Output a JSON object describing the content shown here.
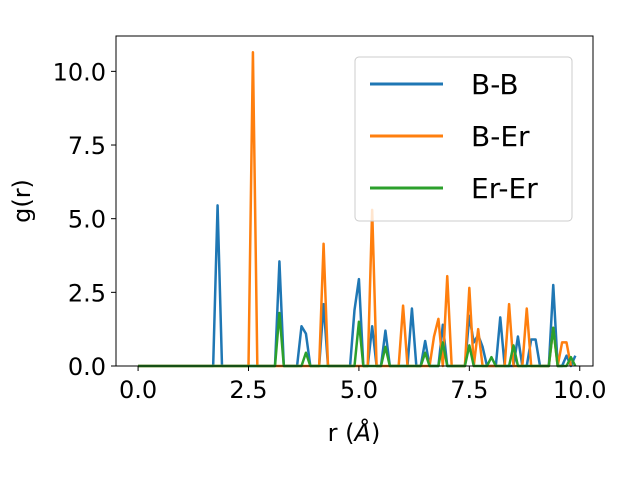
{
  "chart_data": {
    "type": "line",
    "title": "",
    "xlabel": "r (",
    "xlabel_unit": "Å",
    "xlabel_close": ")",
    "ylabel": "g(r)",
    "xlim": [
      -0.5,
      10.3
    ],
    "ylim": [
      0.0,
      11.2
    ],
    "xticks": [
      0.0,
      2.5,
      5.0,
      7.5,
      10.0
    ],
    "xtick_labels": [
      "0.0",
      "2.5",
      "5.0",
      "7.5",
      "10.0"
    ],
    "yticks": [
      0.0,
      2.5,
      5.0,
      7.5,
      10.0
    ],
    "ytick_labels": [
      "0.0",
      "2.5",
      "5.0",
      "7.5",
      "10.0"
    ],
    "grid": false,
    "legend_position": "top-right",
    "series": [
      {
        "name": "B-B",
        "color": "#1f77b4",
        "points": [
          [
            0.0,
            0
          ],
          [
            1.7,
            0
          ],
          [
            1.8,
            5.45
          ],
          [
            1.9,
            0
          ],
          [
            3.1,
            0
          ],
          [
            3.2,
            3.55
          ],
          [
            3.3,
            0
          ],
          [
            3.6,
            0
          ],
          [
            3.7,
            1.35
          ],
          [
            3.8,
            1.1
          ],
          [
            3.9,
            0
          ],
          [
            4.1,
            0
          ],
          [
            4.2,
            2.1
          ],
          [
            4.3,
            0
          ],
          [
            4.8,
            0
          ],
          [
            4.9,
            1.9
          ],
          [
            5.0,
            2.95
          ],
          [
            5.1,
            0
          ],
          [
            5.2,
            0
          ],
          [
            5.3,
            1.35
          ],
          [
            5.4,
            0
          ],
          [
            5.5,
            0
          ],
          [
            5.6,
            1.2
          ],
          [
            5.7,
            0
          ],
          [
            6.1,
            0
          ],
          [
            6.2,
            1.95
          ],
          [
            6.3,
            0
          ],
          [
            6.4,
            0
          ],
          [
            6.5,
            0.85
          ],
          [
            6.6,
            0
          ],
          [
            6.8,
            0
          ],
          [
            6.9,
            1.4
          ],
          [
            7.0,
            0
          ],
          [
            7.4,
            0
          ],
          [
            7.5,
            1.7
          ],
          [
            7.6,
            0.8
          ],
          [
            7.7,
            1.05
          ],
          [
            7.8,
            0.65
          ],
          [
            7.9,
            0
          ],
          [
            8.1,
            0
          ],
          [
            8.2,
            1.65
          ],
          [
            8.3,
            0
          ],
          [
            8.5,
            0
          ],
          [
            8.6,
            1.0
          ],
          [
            8.7,
            0
          ],
          [
            8.8,
            0
          ],
          [
            8.9,
            0.9
          ],
          [
            9.0,
            0.9
          ],
          [
            9.1,
            0
          ],
          [
            9.3,
            0
          ],
          [
            9.4,
            2.75
          ],
          [
            9.5,
            0
          ],
          [
            9.6,
            0
          ],
          [
            9.7,
            0.35
          ],
          [
            9.8,
            0
          ],
          [
            9.9,
            0.35
          ]
        ]
      },
      {
        "name": "B-Er",
        "color": "#ff7f0e",
        "points": [
          [
            0.0,
            0
          ],
          [
            2.5,
            0
          ],
          [
            2.6,
            10.65
          ],
          [
            2.7,
            0
          ],
          [
            4.1,
            0
          ],
          [
            4.2,
            4.15
          ],
          [
            4.3,
            0
          ],
          [
            5.2,
            0
          ],
          [
            5.3,
            5.3
          ],
          [
            5.4,
            0
          ],
          [
            5.9,
            0
          ],
          [
            6.0,
            2.05
          ],
          [
            6.1,
            0
          ],
          [
            6.6,
            0
          ],
          [
            6.7,
            1.0
          ],
          [
            6.8,
            1.6
          ],
          [
            6.9,
            0
          ],
          [
            7.0,
            3.05
          ],
          [
            7.1,
            0
          ],
          [
            7.4,
            0
          ],
          [
            7.5,
            2.65
          ],
          [
            7.6,
            0
          ],
          [
            7.7,
            1.25
          ],
          [
            7.8,
            0
          ],
          [
            8.3,
            0
          ],
          [
            8.4,
            2.1
          ],
          [
            8.5,
            0
          ],
          [
            8.7,
            0
          ],
          [
            8.8,
            1.95
          ],
          [
            8.9,
            0
          ],
          [
            9.3,
            0
          ],
          [
            9.4,
            1.3
          ],
          [
            9.5,
            0
          ],
          [
            9.6,
            0.8
          ],
          [
            9.7,
            0.8
          ],
          [
            9.8,
            0
          ]
        ]
      },
      {
        "name": "Er-Er",
        "color": "#2ca02c",
        "points": [
          [
            0.0,
            0
          ],
          [
            3.1,
            0
          ],
          [
            3.2,
            1.8
          ],
          [
            3.3,
            0
          ],
          [
            3.7,
            0
          ],
          [
            3.8,
            0.45
          ],
          [
            3.9,
            0
          ],
          [
            4.9,
            0
          ],
          [
            5.0,
            1.5
          ],
          [
            5.1,
            0
          ],
          [
            5.5,
            0
          ],
          [
            5.6,
            0.65
          ],
          [
            5.7,
            0
          ],
          [
            6.4,
            0
          ],
          [
            6.5,
            0.45
          ],
          [
            6.6,
            0
          ],
          [
            6.8,
            0
          ],
          [
            6.9,
            0.8
          ],
          [
            7.0,
            0
          ],
          [
            7.4,
            0
          ],
          [
            7.5,
            0.7
          ],
          [
            7.6,
            0
          ],
          [
            7.9,
            0
          ],
          [
            8.0,
            0.3
          ],
          [
            8.1,
            0
          ],
          [
            8.4,
            0
          ],
          [
            8.5,
            0.7
          ],
          [
            8.6,
            0
          ],
          [
            9.3,
            0
          ],
          [
            9.4,
            1.3
          ],
          [
            9.5,
            0
          ],
          [
            9.7,
            0
          ],
          [
            9.8,
            0.3
          ],
          [
            9.9,
            0
          ]
        ]
      }
    ]
  }
}
